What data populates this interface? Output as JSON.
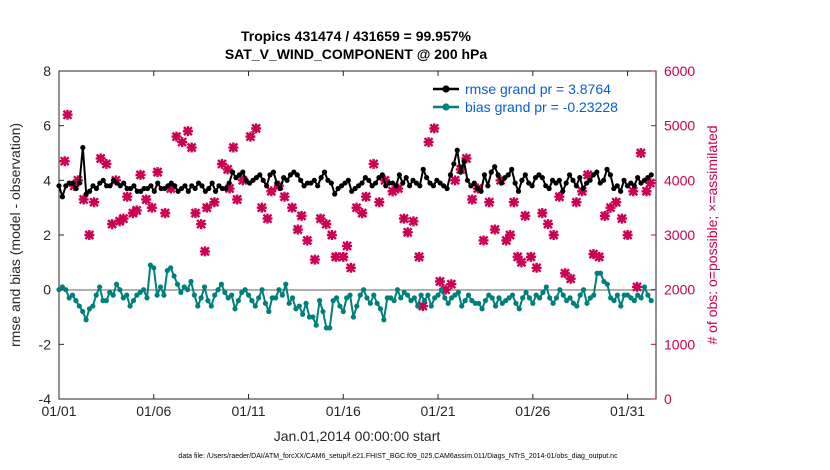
{
  "chart_data": {
    "type": "line",
    "title_line1": "Tropics 431474 / 431659 = 99.957%",
    "title_line2": "SAT_V_WIND_COMPONENT @ 200 hPa",
    "xlabel": "Jan.01,2014 00:00:00 start",
    "ylabel_left": "rmse and bias (model - observation)",
    "ylabel_right": "# of obs: o=possible; ×=assimilated",
    "footer": "data file: /Users/raeder/DAI/ATM_forcXX/CAM6_setup/f.e21.FHIST_BGC.f09_025.CAM6assim.011/Diags_NTrS_2014-01/obs_diag_output.nc",
    "xlim": [
      0,
      31.5
    ],
    "ylim_left": [
      -4,
      8
    ],
    "ylim_right": [
      0,
      6000
    ],
    "x_ticks": [
      {
        "v": 0,
        "label": "01/01"
      },
      {
        "v": 5,
        "label": "01/06"
      },
      {
        "v": 10,
        "label": "01/11"
      },
      {
        "v": 15,
        "label": "01/16"
      },
      {
        "v": 20,
        "label": "01/21"
      },
      {
        "v": 25,
        "label": "01/26"
      },
      {
        "v": 30,
        "label": "01/31"
      }
    ],
    "y_ticks_left": [
      -4,
      -2,
      0,
      2,
      4,
      6,
      8
    ],
    "y_ticks_right": [
      0,
      1000,
      2000,
      3000,
      4000,
      5000,
      6000
    ],
    "legend": {
      "placement": "top-right",
      "rmse_label": "rmse grand pr = 3.8764",
      "bias_label": "bias grand pr = -0.23228"
    },
    "colors": {
      "rmse": "#000000",
      "bias": "#00807a",
      "obs": "#cc0052",
      "zero_line": "#b0b0b0",
      "legend_text": "#0b5cd6"
    },
    "series": [
      {
        "name": "rmse",
        "values": [
          3.8,
          3.4,
          3.8,
          3.9,
          3.9,
          3.7,
          3.9,
          5.2,
          3.5,
          3.6,
          3.8,
          3.7,
          3.9,
          4.0,
          3.8,
          3.8,
          4.0,
          3.9,
          3.8,
          3.9,
          3.7,
          3.7,
          3.8,
          3.6,
          3.6,
          3.7,
          3.7,
          3.8,
          3.6,
          3.9,
          3.7,
          3.7,
          3.8,
          3.9,
          3.8,
          3.6,
          3.7,
          3.8,
          3.6,
          3.8,
          3.7,
          3.9,
          3.8,
          3.6,
          3.7,
          3.9,
          3.6,
          3.8,
          3.7,
          3.7,
          3.9,
          4.3,
          4.1,
          4.2,
          4.3,
          4.0,
          3.9,
          4.0,
          4.1,
          4.2,
          4.0,
          3.8,
          4.2,
          4.3,
          3.9,
          3.7,
          4.1,
          4.0,
          4.2,
          4.3,
          4.2,
          4.0,
          3.8,
          3.9,
          3.9,
          4.0,
          3.8,
          4.1,
          4.3,
          4.0,
          3.9,
          3.5,
          3.7,
          3.8,
          3.9,
          4.0,
          3.6,
          3.7,
          3.8,
          3.9,
          4.1,
          4.0,
          3.8,
          3.9,
          4.1,
          4.2,
          3.8,
          3.9,
          3.9,
          3.8,
          4.2,
          3.9,
          4.1,
          3.8,
          4.0,
          3.9,
          3.8,
          4.4,
          4.1,
          3.9,
          3.8,
          4.0,
          3.9,
          3.8,
          3.7,
          4.2,
          4.6,
          5.1,
          4.3,
          4.7,
          4.0,
          3.8,
          3.9,
          3.7,
          3.6,
          4.2,
          3.8,
          4.3,
          4.5,
          4.2,
          3.9,
          4.1,
          4.2,
          4.4,
          3.9,
          3.6,
          4.0,
          4.2,
          3.9,
          3.8,
          4.1,
          4.2,
          4.1,
          3.8,
          3.7,
          4.0,
          3.9,
          4.0,
          3.6,
          3.9,
          4.2,
          4.0,
          3.8,
          4.1,
          3.7,
          3.9,
          4.0,
          4.2,
          4.3,
          3.9,
          4.0,
          4.4,
          4.2,
          3.7,
          3.8,
          3.6,
          4.0,
          3.8,
          3.9,
          3.8,
          4.1,
          3.9,
          4.0,
          4.1,
          4.2
        ]
      },
      {
        "name": "bias",
        "values": [
          0.0,
          0.1,
          0.0,
          -0.3,
          -0.2,
          -0.4,
          -0.6,
          -0.8,
          -1.1,
          -0.7,
          -0.6,
          -0.2,
          0.1,
          -0.4,
          -0.4,
          -0.1,
          -0.2,
          0.2,
          0.0,
          -0.3,
          -0.2,
          -0.6,
          -0.4,
          -0.2,
          -0.1,
          0.0,
          -0.3,
          0.9,
          0.8,
          -0.2,
          0.1,
          -0.2,
          0.7,
          0.8,
          0.5,
          0.2,
          -0.1,
          0.1,
          0.0,
          0.3,
          -0.2,
          -0.6,
          -0.3,
          0.1,
          -0.4,
          -0.6,
          -0.2,
          0.0,
          0.2,
          -0.1,
          -0.3,
          -0.2,
          -0.7,
          -0.4,
          -0.1,
          0.0,
          -0.2,
          -0.4,
          -0.6,
          -0.3,
          0.0,
          -0.5,
          -0.8,
          -0.3,
          -0.3,
          0.0,
          -0.2,
          0.2,
          -0.5,
          -0.3,
          -0.7,
          -0.6,
          -0.9,
          -0.5,
          -1.0,
          -1.0,
          -1.3,
          -0.4,
          -0.8,
          -1.4,
          -1.4,
          -0.4,
          -0.3,
          -0.6,
          -0.8,
          -0.3,
          -0.2,
          -1.0,
          -0.6,
          -0.2,
          0.0,
          -0.3,
          -0.5,
          -0.2,
          -0.5,
          -0.7,
          -1.1,
          -0.3,
          -0.3,
          -0.4,
          0.0,
          -0.3,
          -0.1,
          -0.2,
          -0.4,
          -0.3,
          -0.6,
          -0.2,
          -0.4,
          -0.2,
          -0.6,
          -0.3,
          -0.2,
          0.0,
          -0.3,
          -0.5,
          -0.3,
          -0.2,
          -0.1,
          -0.6,
          -0.4,
          -0.2,
          -0.4,
          -0.5,
          -0.5,
          -0.7,
          -0.4,
          -0.2,
          -0.3,
          -0.6,
          -0.3,
          -0.5,
          -0.4,
          -0.3,
          -0.2,
          -0.5,
          -0.7,
          -0.3,
          -0.1,
          -0.3,
          -0.5,
          -0.2,
          -0.3,
          -0.1,
          0.1,
          -0.3,
          -0.5,
          -0.3,
          0.0,
          -0.2,
          -0.4,
          -0.3,
          -0.5,
          -0.6,
          -0.2,
          0.0,
          -0.5,
          -0.3,
          -0.2,
          0.6,
          0.6,
          0.3,
          0.2,
          -0.3,
          -0.4,
          -0.2,
          -0.6,
          -0.2,
          -0.2,
          -0.3,
          -0.4,
          -0.2,
          -0.3,
          0.1,
          -0.2,
          -0.4
        ]
      },
      {
        "name": "assimilated",
        "points": [
          [
            0.3,
            4350
          ],
          [
            0.45,
            5200
          ],
          [
            0.8,
            3900
          ],
          [
            1.0,
            4000
          ],
          [
            1.3,
            3650
          ],
          [
            1.6,
            3000
          ],
          [
            1.85,
            3600
          ],
          [
            2.2,
            4400
          ],
          [
            2.5,
            4300
          ],
          [
            2.8,
            3200
          ],
          [
            3.0,
            4000
          ],
          [
            3.2,
            3250
          ],
          [
            3.4,
            3300
          ],
          [
            3.6,
            3700
          ],
          [
            3.9,
            3400
          ],
          [
            4.1,
            3450
          ],
          [
            4.3,
            4100
          ],
          [
            4.6,
            3650
          ],
          [
            4.9,
            3500
          ],
          [
            5.2,
            4150
          ],
          [
            5.6,
            3400
          ],
          [
            5.9,
            3850
          ],
          [
            6.2,
            4800
          ],
          [
            6.5,
            4700
          ],
          [
            6.8,
            4900
          ],
          [
            7.0,
            4600
          ],
          [
            7.2,
            3400
          ],
          [
            7.5,
            3200
          ],
          [
            7.7,
            2700
          ],
          [
            7.8,
            3500
          ],
          [
            8.2,
            3600
          ],
          [
            8.6,
            4300
          ],
          [
            8.9,
            4200
          ],
          [
            9.0,
            3850
          ],
          [
            9.2,
            4600
          ],
          [
            9.4,
            3650
          ],
          [
            9.7,
            4000
          ],
          [
            10.1,
            4800
          ],
          [
            10.4,
            4950
          ],
          [
            10.7,
            3500
          ],
          [
            11.0,
            3300
          ],
          [
            11.2,
            3800
          ],
          [
            11.6,
            3900
          ],
          [
            11.9,
            3700
          ],
          [
            12.3,
            3500
          ],
          [
            12.6,
            3100
          ],
          [
            12.8,
            3350
          ],
          [
            13.1,
            2900
          ],
          [
            13.5,
            2550
          ],
          [
            13.8,
            3300
          ],
          [
            14.1,
            3200
          ],
          [
            14.4,
            3000
          ],
          [
            14.6,
            2600
          ],
          [
            15.0,
            2600
          ],
          [
            15.2,
            2800
          ],
          [
            15.4,
            2400
          ],
          [
            15.7,
            3500
          ],
          [
            16.0,
            3400
          ],
          [
            16.2,
            3700
          ],
          [
            16.6,
            4300
          ],
          [
            16.9,
            3600
          ],
          [
            17.2,
            4000
          ],
          [
            17.6,
            3800
          ],
          [
            17.9,
            3850
          ],
          [
            18.2,
            3300
          ],
          [
            18.4,
            3050
          ],
          [
            18.7,
            3250
          ],
          [
            19.0,
            2600
          ],
          [
            19.2,
            1700
          ],
          [
            19.5,
            4700
          ],
          [
            19.8,
            4950
          ],
          [
            20.1,
            2150
          ],
          [
            20.4,
            2000
          ],
          [
            20.7,
            2100
          ],
          [
            20.9,
            4000
          ],
          [
            21.2,
            4200
          ],
          [
            21.5,
            4400
          ],
          [
            21.8,
            3650
          ],
          [
            22.1,
            3850
          ],
          [
            22.4,
            2900
          ],
          [
            22.7,
            3600
          ],
          [
            23.0,
            3100
          ],
          [
            23.3,
            4000
          ],
          [
            23.6,
            2900
          ],
          [
            23.8,
            3000
          ],
          [
            24.0,
            3600
          ],
          [
            24.2,
            2600
          ],
          [
            24.4,
            2500
          ],
          [
            24.6,
            3350
          ],
          [
            24.9,
            2600
          ],
          [
            25.2,
            2400
          ],
          [
            25.5,
            3400
          ],
          [
            25.8,
            3200
          ],
          [
            26.1,
            3000
          ],
          [
            26.4,
            3700
          ],
          [
            26.7,
            2300
          ],
          [
            27.0,
            2200
          ],
          [
            27.3,
            3600
          ],
          [
            27.6,
            3800
          ],
          [
            27.9,
            4100
          ],
          [
            28.2,
            2650
          ],
          [
            28.5,
            2600
          ],
          [
            28.8,
            3350
          ],
          [
            29.1,
            3500
          ],
          [
            29.4,
            3600
          ],
          [
            29.7,
            3300
          ],
          [
            30.0,
            3000
          ],
          [
            30.3,
            3800
          ],
          [
            30.5,
            2050
          ],
          [
            30.7,
            4500
          ],
          [
            31.0,
            3800
          ],
          [
            31.2,
            3950
          ]
        ]
      }
    ]
  }
}
